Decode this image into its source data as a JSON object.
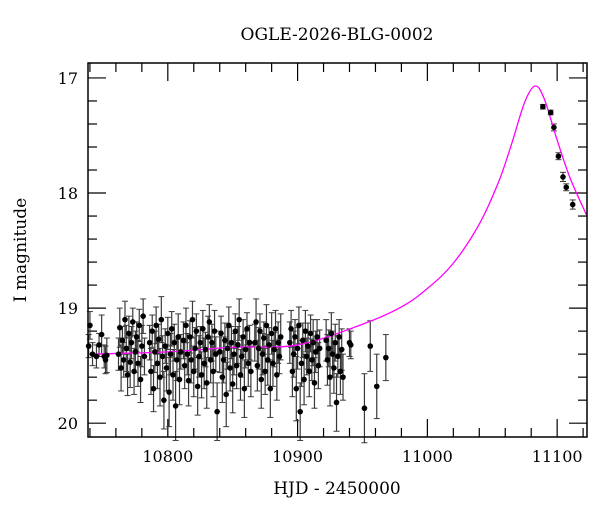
{
  "chart_data": {
    "type": "scatter",
    "title": "OGLE-2026-BLG-0002",
    "xlabel": "HJD - 2450000",
    "ylabel": "I magnitude",
    "xlim": [
      10738.5,
      11123
    ],
    "ylim": [
      20.12,
      16.87
    ],
    "y_inverted": true,
    "grid": false,
    "x_ticks": [
      10800,
      10900,
      11000,
      11100
    ],
    "y_ticks": [
      17,
      18,
      19,
      20
    ],
    "x_minor_step": 20,
    "y_minor_step": 0.2,
    "colors": {
      "points": "#000000",
      "errorbars": "#3a3a3a",
      "model": "#ff00ff"
    },
    "observations_columns": [
      "HJD-2450000",
      "I_mag",
      "error"
    ],
    "observations": [
      [
        10739,
        19.33,
        0.1
      ],
      [
        10740,
        19.15,
        0.12
      ],
      [
        10742,
        19.4,
        0.1
      ],
      [
        10745,
        19.42,
        0.1
      ],
      [
        10747,
        19.32,
        0.1
      ],
      [
        10749,
        19.23,
        0.17
      ],
      [
        10751,
        19.42,
        0.1
      ],
      [
        10752,
        19.45,
        0.12
      ],
      [
        10753,
        19.41,
        0.15
      ],
      [
        10762,
        19.4,
        0.14
      ],
      [
        10763,
        19.17,
        0.17
      ],
      [
        10764,
        19.52,
        0.2
      ],
      [
        10765,
        19.28,
        0.12
      ],
      [
        10766,
        19.45,
        0.15
      ],
      [
        10767,
        19.1,
        0.16
      ],
      [
        10768,
        19.35,
        0.2
      ],
      [
        10769,
        19.58,
        0.18
      ],
      [
        10770,
        19.22,
        0.15
      ],
      [
        10771,
        19.47,
        0.22
      ],
      [
        10772,
        19.3,
        0.14
      ],
      [
        10773,
        19.12,
        0.12
      ],
      [
        10774,
        19.55,
        0.2
      ],
      [
        10775,
        19.38,
        0.18
      ],
      [
        10776,
        19.25,
        0.13
      ],
      [
        10777,
        19.48,
        0.2
      ],
      [
        10778,
        19.15,
        0.14
      ],
      [
        10779,
        19.62,
        0.2
      ],
      [
        10780,
        19.33,
        0.18
      ],
      [
        10781,
        19.07,
        0.15
      ],
      [
        10782,
        19.42,
        0.16
      ],
      [
        10786,
        19.3,
        0.15
      ],
      [
        10787,
        19.55,
        0.2
      ],
      [
        10788,
        19.2,
        0.14
      ],
      [
        10789,
        19.7,
        0.2
      ],
      [
        10790,
        19.38,
        0.18
      ],
      [
        10791,
        19.15,
        0.16
      ],
      [
        10792,
        19.48,
        0.22
      ],
      [
        10793,
        19.27,
        0.13
      ],
      [
        10794,
        19.6,
        0.25
      ],
      [
        10795,
        19.1,
        0.2
      ],
      [
        10796,
        19.42,
        0.18
      ],
      [
        10797,
        19.8,
        0.25
      ],
      [
        10798,
        19.33,
        0.15
      ],
      [
        10799,
        19.52,
        0.2
      ],
      [
        10800,
        19.22,
        0.14
      ],
      [
        10801,
        19.73,
        0.3
      ],
      [
        10802,
        19.4,
        0.18
      ],
      [
        10803,
        19.18,
        0.15
      ],
      [
        10804,
        19.58,
        0.22
      ],
      [
        10805,
        19.3,
        0.16
      ],
      [
        10806,
        19.85,
        0.3
      ],
      [
        10807,
        19.45,
        0.18
      ],
      [
        10808,
        19.25,
        0.2
      ],
      [
        10809,
        19.62,
        0.22
      ],
      [
        10810,
        19.38,
        0.15
      ],
      [
        10812,
        19.28,
        0.16
      ],
      [
        10813,
        19.5,
        0.2
      ],
      [
        10814,
        19.15,
        0.15
      ],
      [
        10815,
        19.4,
        0.18
      ],
      [
        10816,
        19.63,
        0.22
      ],
      [
        10817,
        19.25,
        0.14
      ],
      [
        10818,
        19.45,
        0.2
      ],
      [
        10819,
        19.1,
        0.16
      ],
      [
        10820,
        19.55,
        0.22
      ],
      [
        10821,
        19.35,
        0.18
      ],
      [
        10822,
        19.2,
        0.15
      ],
      [
        10823,
        19.68,
        0.25
      ],
      [
        10824,
        19.42,
        0.18
      ],
      [
        10825,
        19.3,
        0.14
      ],
      [
        10826,
        19.58,
        0.2
      ],
      [
        10827,
        19.18,
        0.16
      ],
      [
        10828,
        19.48,
        0.22
      ],
      [
        10829,
        19.36,
        0.15
      ],
      [
        10830,
        19.65,
        0.22
      ],
      [
        10831,
        19.25,
        0.18
      ],
      [
        10832,
        19.12,
        0.15
      ],
      [
        10833,
        19.45,
        0.2
      ],
      [
        10834,
        19.3,
        0.16
      ],
      [
        10835,
        19.55,
        0.22
      ],
      [
        10836,
        19.2,
        0.18
      ],
      [
        10837,
        19.4,
        0.15
      ],
      [
        10838,
        19.9,
        0.25
      ],
      [
        10840,
        19.38,
        0.18
      ],
      [
        10841,
        19.22,
        0.15
      ],
      [
        10842,
        19.6,
        0.22
      ],
      [
        10843,
        19.45,
        0.2
      ],
      [
        10844,
        19.28,
        0.15
      ],
      [
        10845,
        19.75,
        0.28
      ],
      [
        10846,
        19.35,
        0.18
      ],
      [
        10847,
        19.15,
        0.16
      ],
      [
        10848,
        19.52,
        0.2
      ],
      [
        10849,
        19.3,
        0.14
      ],
      [
        10850,
        19.66,
        0.25
      ],
      [
        10851,
        19.4,
        0.18
      ],
      [
        10852,
        19.2,
        0.15
      ],
      [
        10853,
        19.5,
        0.2
      ],
      [
        10854,
        19.32,
        0.16
      ],
      [
        10855,
        19.1,
        0.18
      ],
      [
        10856,
        19.58,
        0.22
      ],
      [
        10857,
        19.42,
        0.18
      ],
      [
        10858,
        19.25,
        0.15
      ],
      [
        10859,
        19.7,
        0.25
      ],
      [
        10860,
        19.36,
        0.16
      ],
      [
        10861,
        19.18,
        0.14
      ],
      [
        10862,
        19.48,
        0.2
      ],
      [
        10863,
        19.3,
        0.15
      ],
      [
        10864,
        19.55,
        0.22
      ],
      [
        10867,
        19.3,
        0.16
      ],
      [
        10868,
        19.12,
        0.2
      ],
      [
        10869,
        19.5,
        0.22
      ],
      [
        10870,
        19.35,
        0.18
      ],
      [
        10871,
        19.2,
        0.15
      ],
      [
        10872,
        19.62,
        0.25
      ],
      [
        10873,
        19.4,
        0.18
      ],
      [
        10874,
        19.26,
        0.14
      ],
      [
        10875,
        19.55,
        0.2
      ],
      [
        10876,
        19.15,
        0.18
      ],
      [
        10877,
        19.45,
        0.22
      ],
      [
        10878,
        19.32,
        0.15
      ],
      [
        10879,
        19.7,
        0.25
      ],
      [
        10880,
        19.22,
        0.18
      ],
      [
        10881,
        19.48,
        0.2
      ],
      [
        10882,
        19.36,
        0.15
      ],
      [
        10883,
        19.18,
        0.16
      ],
      [
        10884,
        19.58,
        0.22
      ],
      [
        10885,
        19.3,
        0.18
      ],
      [
        10886,
        19.42,
        0.15
      ],
      [
        10887,
        19.25,
        0.2
      ],
      [
        10894,
        19.3,
        0.18
      ],
      [
        10895,
        19.18,
        0.16
      ],
      [
        10896,
        19.55,
        0.22
      ],
      [
        10897,
        19.4,
        0.2
      ],
      [
        10898,
        19.25,
        0.15
      ],
      [
        10899,
        19.7,
        0.28
      ],
      [
        10900,
        19.35,
        0.18
      ],
      [
        10901,
        19.15,
        0.16
      ],
      [
        10902,
        19.9,
        0.25
      ],
      [
        10903,
        19.48,
        0.2
      ],
      [
        10904,
        19.28,
        0.15
      ],
      [
        10905,
        19.62,
        0.22
      ],
      [
        10906,
        19.2,
        0.18
      ],
      [
        10907,
        19.42,
        0.16
      ],
      [
        10908,
        19.33,
        0.2
      ],
      [
        10909,
        19.55,
        0.22
      ],
      [
        10910,
        19.22,
        0.16
      ],
      [
        10911,
        19.45,
        0.18
      ],
      [
        10912,
        19.3,
        0.2
      ],
      [
        10913,
        19.65,
        0.22
      ],
      [
        10914,
        19.38,
        0.18
      ],
      [
        10915,
        19.25,
        0.15
      ],
      [
        10916,
        19.5,
        0.2
      ],
      [
        10917,
        19.35,
        0.16
      ],
      [
        10922,
        19.28,
        0.18
      ],
      [
        10923,
        19.45,
        0.22
      ],
      [
        10924,
        19.35,
        0.16
      ],
      [
        10925,
        19.6,
        0.25
      ],
      [
        10926,
        19.22,
        0.18
      ],
      [
        10927,
        19.4,
        0.2
      ],
      [
        10928,
        19.52,
        0.22
      ],
      [
        10929,
        19.3,
        0.16
      ],
      [
        10930,
        19.82,
        0.25
      ],
      [
        10931,
        19.42,
        0.18
      ],
      [
        10932,
        19.25,
        0.15
      ],
      [
        10933,
        19.55,
        0.2
      ],
      [
        10934,
        19.36,
        0.18
      ],
      [
        10935,
        19.6,
        0.2
      ],
      [
        10940,
        19.3,
        0.12
      ],
      [
        10941,
        19.32,
        0.12
      ],
      [
        10951.5,
        19.87,
        0.3
      ],
      [
        10956,
        19.33,
        0.22
      ],
      [
        10961,
        19.68,
        0.28
      ],
      [
        10968,
        19.43,
        0.2
      ],
      [
        11089,
        17.25,
        0.02
      ],
      [
        11095,
        17.3,
        0.02
      ],
      [
        11097.5,
        17.43,
        0.03
      ],
      [
        11101,
        17.68,
        0.03
      ],
      [
        11104.5,
        17.86,
        0.04
      ],
      [
        11107,
        17.95,
        0.03
      ],
      [
        11112,
        18.1,
        0.04
      ]
    ],
    "model_curve": {
      "x": [
        10738.5,
        10800,
        10850,
        10900,
        10950,
        10980,
        11000,
        11020,
        11040,
        11055,
        11065,
        11075,
        11083,
        11090,
        11100,
        11110,
        11123
      ],
      "y": [
        19.4,
        19.38,
        19.34,
        19.32,
        19.14,
        18.99,
        18.83,
        18.61,
        18.27,
        17.9,
        17.57,
        17.21,
        17.07,
        17.18,
        17.54,
        17.87,
        18.2
      ]
    }
  }
}
